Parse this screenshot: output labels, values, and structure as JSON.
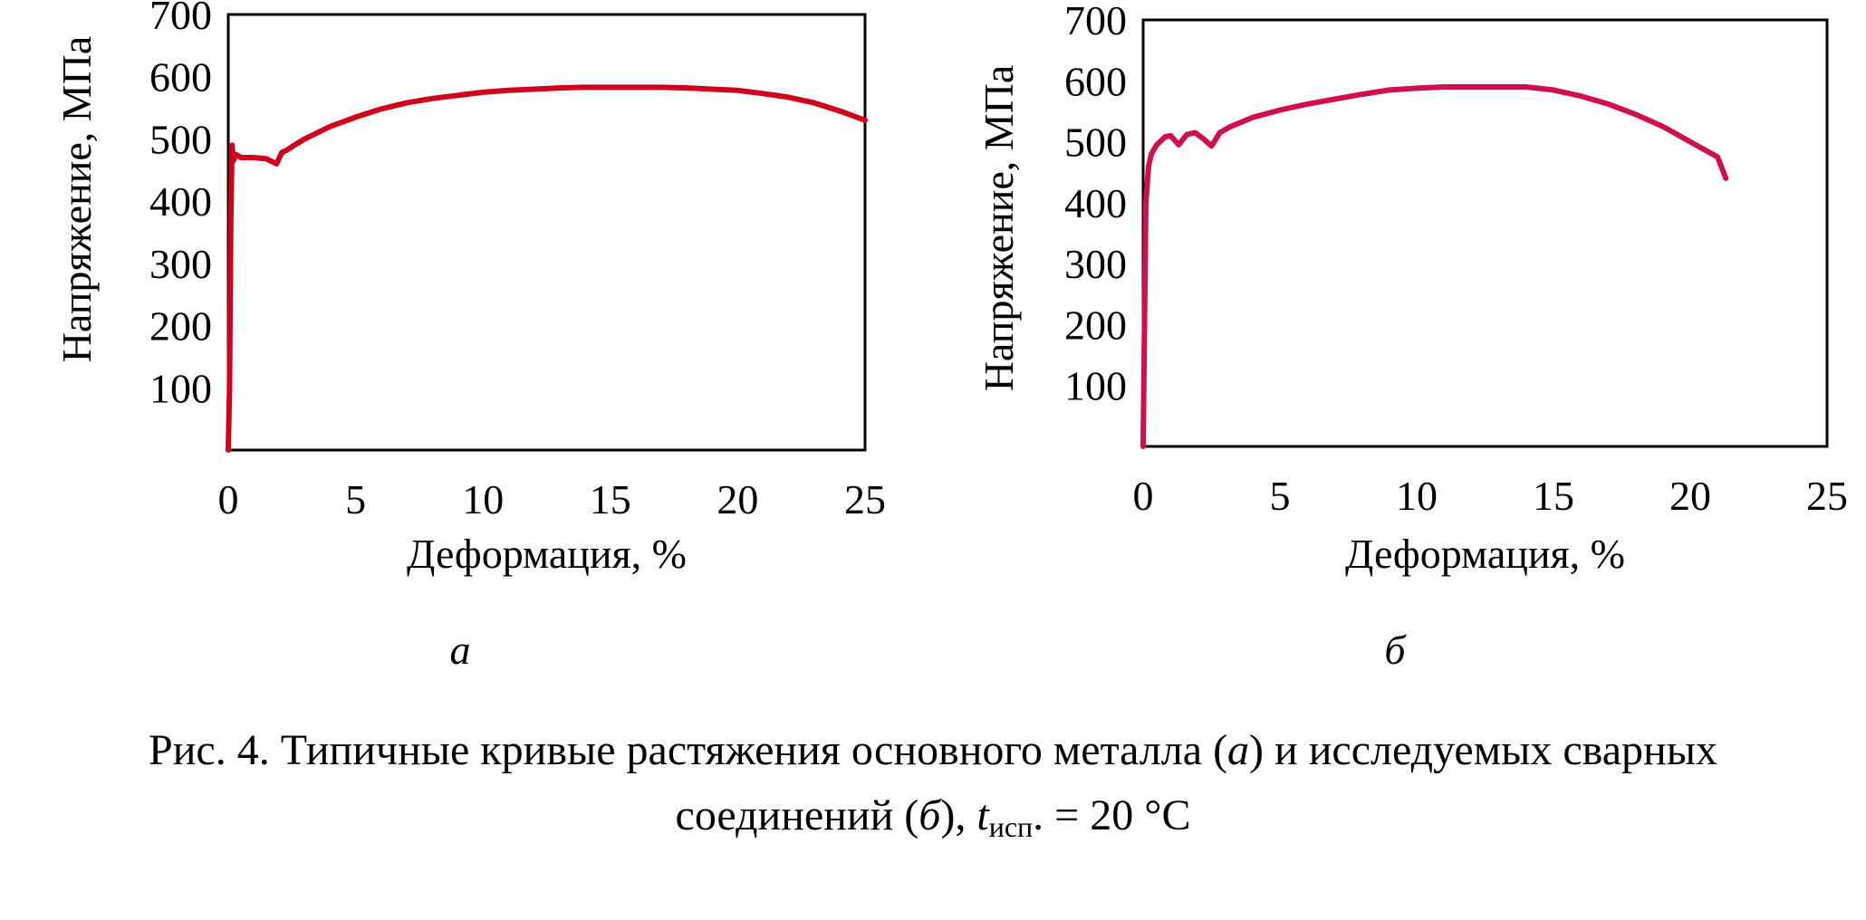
{
  "chart_data": [
    {
      "type": "line",
      "panel": "a",
      "xlabel": "Деформация, %",
      "ylabel": "Напряжение, МПа",
      "xlim": [
        0,
        25
      ],
      "ylim": [
        0,
        700
      ],
      "xticks": [
        "0",
        "5",
        "10",
        "15",
        "20",
        "25"
      ],
      "yticks": [
        "100",
        "200",
        "300",
        "400",
        "500",
        "600",
        "700"
      ],
      "grid": false,
      "color": "#d0021b",
      "x": [
        0,
        0.05,
        0.1,
        0.15,
        0.2,
        0.3,
        0.5,
        1.0,
        1.5,
        1.9,
        2.1,
        2.3,
        2.6,
        3,
        4,
        5,
        6,
        7,
        8,
        9,
        10,
        11,
        12,
        13,
        14,
        15,
        16,
        17,
        18,
        19,
        20,
        21,
        22,
        23,
        24,
        25
      ],
      "y": [
        0,
        100,
        370,
        490,
        465,
        475,
        470,
        470,
        468,
        460,
        478,
        482,
        490,
        500,
        520,
        535,
        548,
        558,
        565,
        570,
        575,
        578,
        580,
        582,
        583,
        583,
        583,
        583,
        582,
        580,
        578,
        573,
        567,
        558,
        545,
        530
      ]
    },
    {
      "type": "line",
      "panel": "б",
      "xlabel": "Деформация, %",
      "ylabel": "Напряжение, МПа",
      "xlim": [
        0,
        25
      ],
      "ylim": [
        0,
        700
      ],
      "xticks": [
        "0",
        "5",
        "10",
        "15",
        "20",
        "25"
      ],
      "yticks": [
        "100",
        "200",
        "300",
        "400",
        "500",
        "600",
        "700"
      ],
      "grid": false,
      "color": "#d0104c",
      "x": [
        0,
        0.05,
        0.1,
        0.2,
        0.3,
        0.5,
        0.8,
        1.0,
        1.3,
        1.6,
        1.9,
        2.2,
        2.5,
        2.8,
        3.2,
        4,
        5,
        6,
        7,
        8,
        9,
        10,
        11,
        12,
        13,
        14,
        15,
        16,
        17,
        18,
        19,
        20,
        21,
        21.3
      ],
      "y": [
        0,
        200,
        400,
        460,
        480,
        495,
        508,
        510,
        495,
        512,
        515,
        505,
        493,
        515,
        525,
        540,
        552,
        562,
        570,
        578,
        585,
        588,
        590,
        590,
        590,
        590,
        585,
        575,
        562,
        545,
        525,
        500,
        475,
        440
      ]
    }
  ],
  "panel_labels": [
    "а",
    "б"
  ],
  "caption": {
    "line1_prefix": "Рис. 4. Типичные кривые растяжения основного металла (",
    "line1_letter": "а",
    "line1_suffix": ") и исследуемых сварных",
    "line2_prefix": "соединений (",
    "line2_letter": "б",
    "line2_mid": "), ",
    "t_symbol": "t",
    "t_sub": "исп",
    "line2_suffix": ". = 20 °С"
  }
}
